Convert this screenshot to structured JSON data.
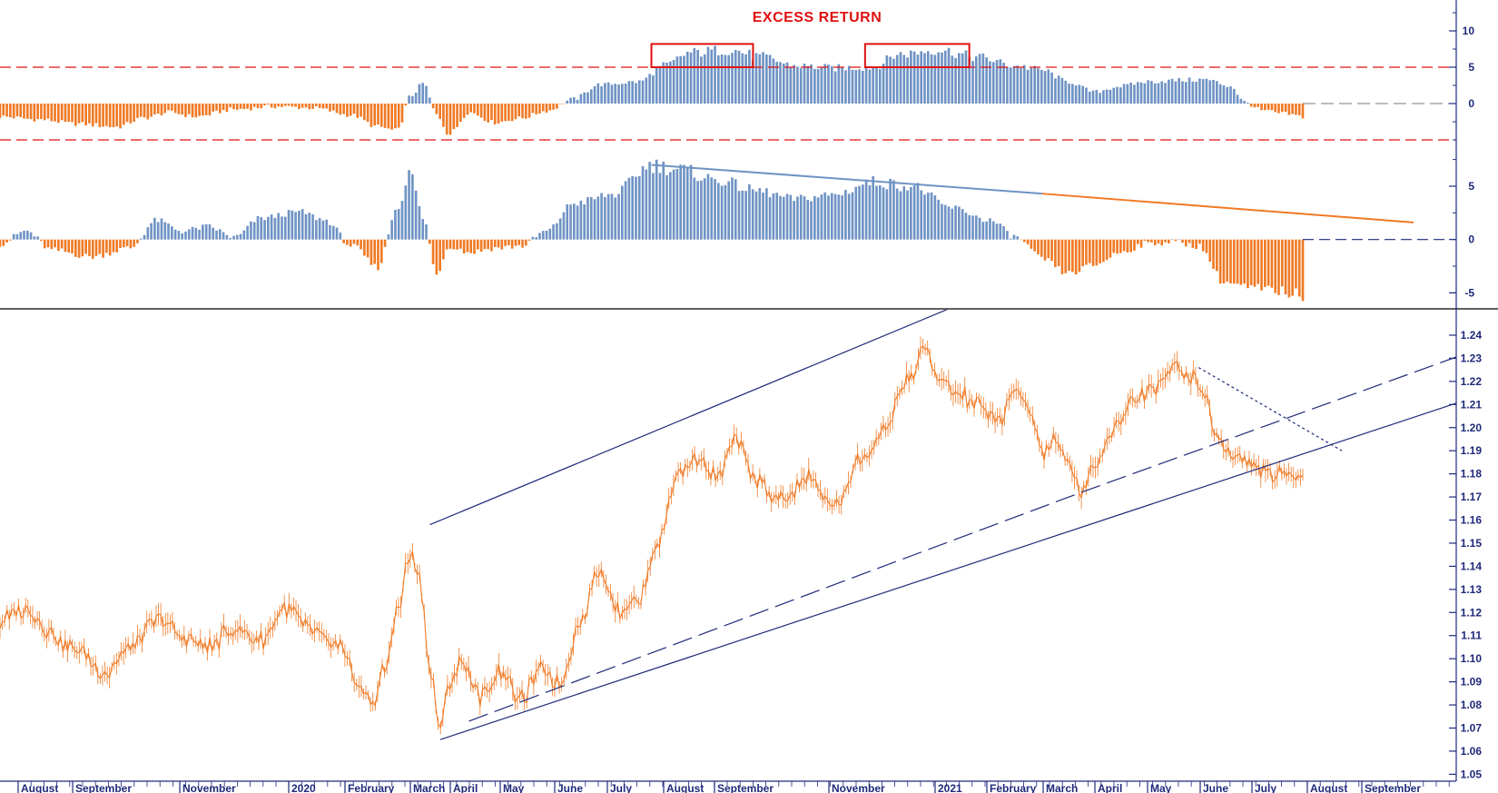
{
  "chart_data": [
    {
      "type": "bar",
      "title": "EXCESS RETURN",
      "panel": "top",
      "yticks": [
        0,
        5,
        10
      ],
      "ylim": [
        -5.5,
        12.5
      ],
      "reference_lines": [
        5,
        -5
      ],
      "zero_line": 0,
      "colors": {
        "positive": "#6f93c4",
        "negative": "#f07a25",
        "reference": "#e01010",
        "zero": "#7a7a7a"
      },
      "series_anchors": [
        {
          "t": 0,
          "v": -1.8
        },
        {
          "t": 0.03,
          "v": -2.2
        },
        {
          "t": 0.06,
          "v": -2.8
        },
        {
          "t": 0.09,
          "v": -3.2
        },
        {
          "t": 0.11,
          "v": -2.0
        },
        {
          "t": 0.13,
          "v": -1.2
        },
        {
          "t": 0.15,
          "v": -1.8
        },
        {
          "t": 0.18,
          "v": -0.8
        },
        {
          "t": 0.21,
          "v": -0.4
        },
        {
          "t": 0.24,
          "v": -0.6
        },
        {
          "t": 0.27,
          "v": -1.6
        },
        {
          "t": 0.29,
          "v": -3.2
        },
        {
          "t": 0.305,
          "v": -3.8
        },
        {
          "t": 0.315,
          "v": 1.0
        },
        {
          "t": 0.325,
          "v": 2.8
        },
        {
          "t": 0.335,
          "v": -1.5
        },
        {
          "t": 0.345,
          "v": -4.2
        },
        {
          "t": 0.36,
          "v": -1.2
        },
        {
          "t": 0.38,
          "v": -2.6
        },
        {
          "t": 0.4,
          "v": -2.0
        },
        {
          "t": 0.42,
          "v": -1.0
        },
        {
          "t": 0.44,
          "v": 0.6
        },
        {
          "t": 0.46,
          "v": 2.6
        },
        {
          "t": 0.49,
          "v": 3.0
        },
        {
          "t": 0.51,
          "v": 5.2
        },
        {
          "t": 0.53,
          "v": 7.0
        },
        {
          "t": 0.56,
          "v": 7.4
        },
        {
          "t": 0.585,
          "v": 6.4
        },
        {
          "t": 0.61,
          "v": 5.2
        },
        {
          "t": 0.64,
          "v": 4.9
        },
        {
          "t": 0.67,
          "v": 5.0
        },
        {
          "t": 0.69,
          "v": 6.8
        },
        {
          "t": 0.72,
          "v": 7.4
        },
        {
          "t": 0.75,
          "v": 6.4
        },
        {
          "t": 0.78,
          "v": 5.2
        },
        {
          "t": 0.8,
          "v": 4.6
        },
        {
          "t": 0.82,
          "v": 3.0
        },
        {
          "t": 0.84,
          "v": 1.6
        },
        {
          "t": 0.86,
          "v": 2.4
        },
        {
          "t": 0.88,
          "v": 3.0
        },
        {
          "t": 0.905,
          "v": 3.2
        },
        {
          "t": 0.925,
          "v": 3.3
        },
        {
          "t": 0.945,
          "v": 2.4
        },
        {
          "t": 0.955,
          "v": 0.2
        },
        {
          "t": 0.97,
          "v": -1.0
        },
        {
          "t": 0.985,
          "v": -1.4
        },
        {
          "t": 1.0,
          "v": -1.8
        }
      ],
      "highlight_boxes": [
        {
          "period": "August-September",
          "level_low": 5,
          "level_high": 8.2
        },
        {
          "period": "December-January",
          "level_low": 5,
          "level_high": 8.2
        }
      ]
    },
    {
      "type": "bar",
      "title": "",
      "panel": "middle",
      "yticks": [
        -5,
        0,
        5
      ],
      "ylim": [
        -6.5,
        9.0
      ],
      "zero_line": 0,
      "colors": {
        "positive": "#6f93c4",
        "negative": "#f07a25",
        "trend_blue": "#6f93c4",
        "trend_orange": "#f07a25",
        "zero": "#1f2a7a"
      },
      "series_anchors": [
        {
          "t": 0,
          "v": -0.4
        },
        {
          "t": 0.02,
          "v": 0.8
        },
        {
          "t": 0.04,
          "v": -1.0
        },
        {
          "t": 0.07,
          "v": -1.6
        },
        {
          "t": 0.1,
          "v": -0.8
        },
        {
          "t": 0.12,
          "v": 1.8
        },
        {
          "t": 0.14,
          "v": 0.8
        },
        {
          "t": 0.16,
          "v": 1.2
        },
        {
          "t": 0.18,
          "v": 0.2
        },
        {
          "t": 0.2,
          "v": 2.0
        },
        {
          "t": 0.23,
          "v": 2.6
        },
        {
          "t": 0.25,
          "v": 1.8
        },
        {
          "t": 0.27,
          "v": -0.6
        },
        {
          "t": 0.29,
          "v": -2.6
        },
        {
          "t": 0.305,
          "v": 3.0
        },
        {
          "t": 0.315,
          "v": 6.2
        },
        {
          "t": 0.325,
          "v": 2.0
        },
        {
          "t": 0.335,
          "v": -3.2
        },
        {
          "t": 0.345,
          "v": -0.6
        },
        {
          "t": 0.36,
          "v": -1.2
        },
        {
          "t": 0.38,
          "v": -0.8
        },
        {
          "t": 0.4,
          "v": -0.6
        },
        {
          "t": 0.42,
          "v": 0.8
        },
        {
          "t": 0.44,
          "v": 3.4
        },
        {
          "t": 0.47,
          "v": 4.2
        },
        {
          "t": 0.5,
          "v": 7.0
        },
        {
          "t": 0.52,
          "v": 6.6
        },
        {
          "t": 0.55,
          "v": 5.6
        },
        {
          "t": 0.58,
          "v": 4.6
        },
        {
          "t": 0.61,
          "v": 3.8
        },
        {
          "t": 0.64,
          "v": 4.2
        },
        {
          "t": 0.67,
          "v": 5.4
        },
        {
          "t": 0.7,
          "v": 5.0
        },
        {
          "t": 0.73,
          "v": 3.0
        },
        {
          "t": 0.76,
          "v": 1.8
        },
        {
          "t": 0.78,
          "v": 0.2
        },
        {
          "t": 0.8,
          "v": -1.8
        },
        {
          "t": 0.82,
          "v": -3.2
        },
        {
          "t": 0.84,
          "v": -2.4
        },
        {
          "t": 0.86,
          "v": -1.2
        },
        {
          "t": 0.88,
          "v": -0.4
        },
        {
          "t": 0.9,
          "v": -0.2
        },
        {
          "t": 0.92,
          "v": -0.6
        },
        {
          "t": 0.94,
          "v": -4.0
        },
        {
          "t": 0.96,
          "v": -4.6
        },
        {
          "t": 0.98,
          "v": -4.8
        },
        {
          "t": 1.0,
          "v": -5.2
        }
      ],
      "trendline": [
        {
          "t": 0.5,
          "v": 7.0
        },
        {
          "t": 0.8,
          "v": 4.3
        },
        {
          "t": 1.085,
          "v": 1.6
        }
      ]
    },
    {
      "type": "line",
      "title": "",
      "panel": "bottom",
      "yticks": [
        1.05,
        1.06,
        1.07,
        1.08,
        1.09,
        1.1,
        1.11,
        1.12,
        1.13,
        1.14,
        1.15,
        1.16,
        1.17,
        1.18,
        1.19,
        1.2,
        1.21,
        1.22,
        1.23,
        1.24
      ],
      "ylim": [
        1.047,
        1.251
      ],
      "xticks": [
        "August",
        "September",
        "November",
        "2020",
        "February",
        "March",
        "April",
        "May",
        "June",
        "July",
        "August",
        "September",
        "November",
        "2021",
        "February",
        "March",
        "April",
        "May",
        "June",
        "July",
        "August",
        "September"
      ],
      "colors": {
        "price": "#f07a25",
        "channel": "#1f2a7a"
      },
      "series_anchors": [
        {
          "t": 0,
          "v": 1.116
        },
        {
          "t": 0.02,
          "v": 1.122
        },
        {
          "t": 0.04,
          "v": 1.11
        },
        {
          "t": 0.06,
          "v": 1.103
        },
        {
          "t": 0.08,
          "v": 1.093
        },
        {
          "t": 0.1,
          "v": 1.105
        },
        {
          "t": 0.12,
          "v": 1.117
        },
        {
          "t": 0.14,
          "v": 1.11
        },
        {
          "t": 0.16,
          "v": 1.105
        },
        {
          "t": 0.18,
          "v": 1.113
        },
        {
          "t": 0.2,
          "v": 1.108
        },
        {
          "t": 0.22,
          "v": 1.122
        },
        {
          "t": 0.24,
          "v": 1.112
        },
        {
          "t": 0.26,
          "v": 1.105
        },
        {
          "t": 0.275,
          "v": 1.09
        },
        {
          "t": 0.285,
          "v": 1.08
        },
        {
          "t": 0.295,
          "v": 1.095
        },
        {
          "t": 0.305,
          "v": 1.12
        },
        {
          "t": 0.315,
          "v": 1.145
        },
        {
          "t": 0.322,
          "v": 1.135
        },
        {
          "t": 0.33,
          "v": 1.095
        },
        {
          "t": 0.338,
          "v": 1.068
        },
        {
          "t": 0.345,
          "v": 1.09
        },
        {
          "t": 0.355,
          "v": 1.098
        },
        {
          "t": 0.37,
          "v": 1.083
        },
        {
          "t": 0.385,
          "v": 1.095
        },
        {
          "t": 0.4,
          "v": 1.082
        },
        {
          "t": 0.415,
          "v": 1.095
        },
        {
          "t": 0.43,
          "v": 1.09
        },
        {
          "t": 0.445,
          "v": 1.115
        },
        {
          "t": 0.46,
          "v": 1.138
        },
        {
          "t": 0.475,
          "v": 1.122
        },
        {
          "t": 0.49,
          "v": 1.125
        },
        {
          "t": 0.505,
          "v": 1.15
        },
        {
          "t": 0.52,
          "v": 1.18
        },
        {
          "t": 0.535,
          "v": 1.188
        },
        {
          "t": 0.55,
          "v": 1.178
        },
        {
          "t": 0.565,
          "v": 1.195
        },
        {
          "t": 0.58,
          "v": 1.178
        },
        {
          "t": 0.6,
          "v": 1.168
        },
        {
          "t": 0.62,
          "v": 1.178
        },
        {
          "t": 0.64,
          "v": 1.166
        },
        {
          "t": 0.66,
          "v": 1.185
        },
        {
          "t": 0.68,
          "v": 1.198
        },
        {
          "t": 0.69,
          "v": 1.215
        },
        {
          "t": 0.7,
          "v": 1.222
        },
        {
          "t": 0.71,
          "v": 1.234
        },
        {
          "t": 0.72,
          "v": 1.22
        },
        {
          "t": 0.735,
          "v": 1.215
        },
        {
          "t": 0.75,
          "v": 1.21
        },
        {
          "t": 0.765,
          "v": 1.202
        },
        {
          "t": 0.78,
          "v": 1.218
        },
        {
          "t": 0.79,
          "v": 1.205
        },
        {
          "t": 0.8,
          "v": 1.19
        },
        {
          "t": 0.81,
          "v": 1.195
        },
        {
          "t": 0.82,
          "v": 1.184
        },
        {
          "t": 0.83,
          "v": 1.172
        },
        {
          "t": 0.84,
          "v": 1.185
        },
        {
          "t": 0.855,
          "v": 1.2
        },
        {
          "t": 0.87,
          "v": 1.212
        },
        {
          "t": 0.885,
          "v": 1.218
        },
        {
          "t": 0.9,
          "v": 1.226
        },
        {
          "t": 0.915,
          "v": 1.222
        },
        {
          "t": 0.925,
          "v": 1.213
        },
        {
          "t": 0.935,
          "v": 1.195
        },
        {
          "t": 0.945,
          "v": 1.19
        },
        {
          "t": 0.955,
          "v": 1.186
        },
        {
          "t": 0.965,
          "v": 1.183
        },
        {
          "t": 0.975,
          "v": 1.18
        },
        {
          "t": 0.985,
          "v": 1.179
        },
        {
          "t": 1.0,
          "v": 1.181
        }
      ],
      "trendlines": [
        {
          "style": "solid",
          "points": [
            {
              "t": 0.338,
              "v": 1.065
            },
            {
              "t": 1.12,
              "v": 1.211
            }
          ]
        },
        {
          "style": "solid",
          "points": [
            {
              "t": 0.33,
              "v": 1.158
            },
            {
              "t": 0.88,
              "v": 1.287
            }
          ]
        },
        {
          "style": "dashed",
          "points": [
            {
              "t": 0.36,
              "v": 1.073
            },
            {
              "t": 0.83,
              "v": 1.172
            },
            {
              "t": 1.12,
              "v": 1.231
            }
          ]
        },
        {
          "style": "dotted",
          "points": [
            {
              "t": 0.92,
              "v": 1.226
            },
            {
              "t": 1.03,
              "v": 1.19
            }
          ]
        }
      ]
    }
  ]
}
